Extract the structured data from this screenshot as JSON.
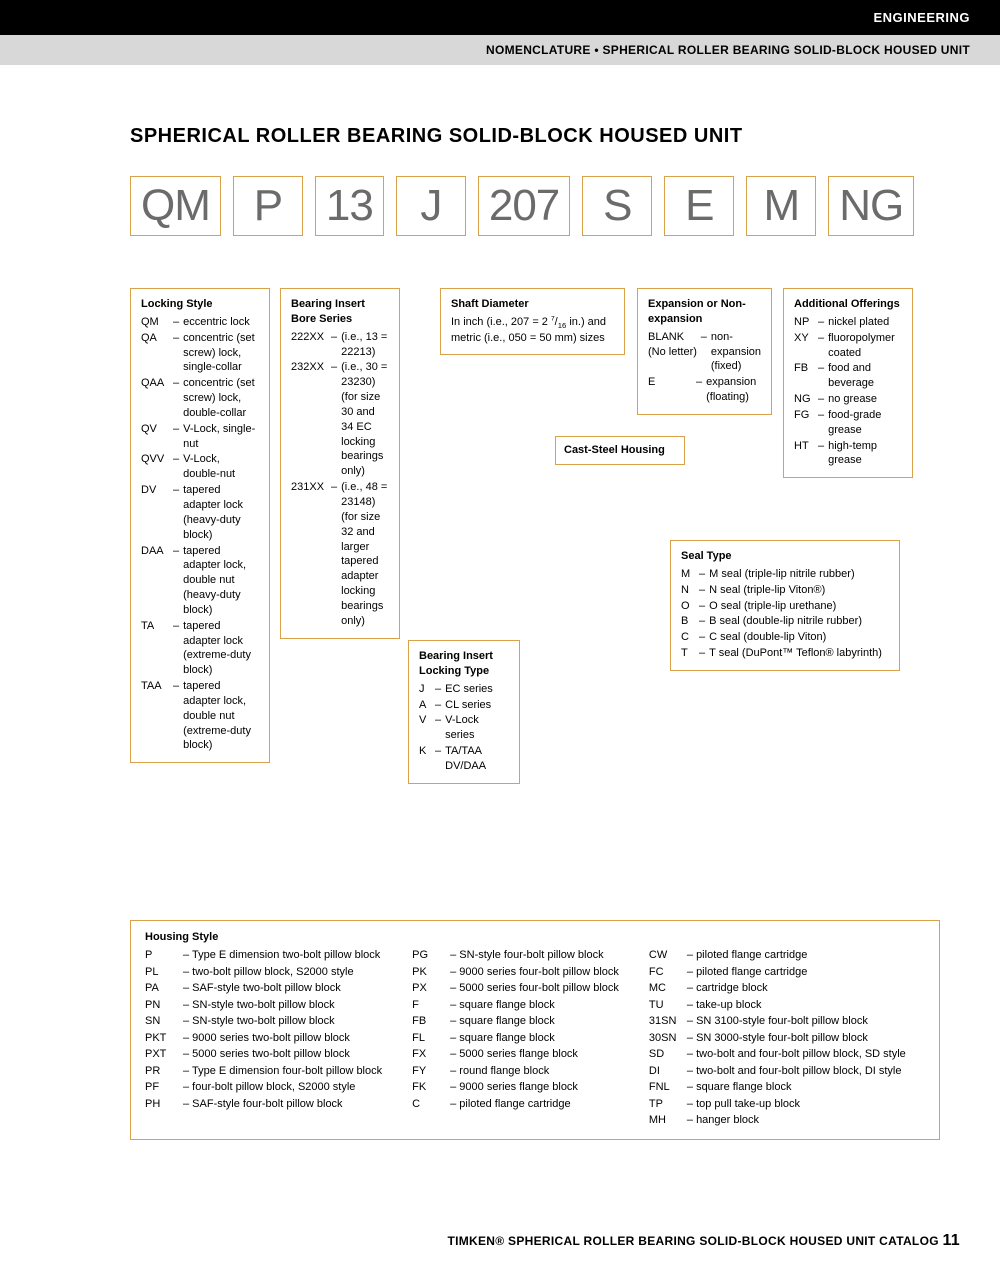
{
  "header": {
    "category": "ENGINEERING",
    "breadcrumb": "NOMENCLATURE • SPHERICAL ROLLER BEARING SOLID-BLOCK HOUSED UNIT"
  },
  "title": "SPHERICAL ROLLER BEARING SOLID-BLOCK HOUSED UNIT",
  "code_parts": [
    "QM",
    "P",
    "13",
    "J",
    "207",
    "S",
    "E",
    "M",
    "NG"
  ],
  "locking_style": {
    "title": "Locking Style",
    "items": [
      {
        "code": "QM",
        "text": "eccentric lock"
      },
      {
        "code": "QA",
        "text": "concentric (set screw) lock, single-collar"
      },
      {
        "code": "QAA",
        "text": "concentric (set screw) lock, double-collar"
      },
      {
        "code": "QV",
        "text": "V-Lock, single-nut"
      },
      {
        "code": "QVV",
        "text": "V-Lock, double-nut"
      },
      {
        "code": "DV",
        "text": "tapered adapter lock (heavy-duty block)"
      },
      {
        "code": "DAA",
        "text": "tapered adapter lock, double nut (heavy-duty block)"
      },
      {
        "code": "TA",
        "text": "tapered adapter lock (extreme-duty block)"
      },
      {
        "code": "TAA",
        "text": "tapered adapter lock, double nut (extreme-duty block)"
      }
    ]
  },
  "bore_series": {
    "title": "Bearing Insert Bore Series",
    "items": [
      {
        "code": "222XX",
        "text": "(i.e., 13 = 22213)"
      },
      {
        "code": "232XX",
        "text": "(i.e., 30 = 23230) (for size 30 and 34 EC locking bearings only)"
      },
      {
        "code": "231XX",
        "text": "(i.e., 48 = 23148) (for size 32 and larger tapered adapter locking bearings only)"
      }
    ]
  },
  "locking_type": {
    "title": "Bearing Insert Locking Type",
    "items": [
      {
        "code": "J",
        "text": "EC series"
      },
      {
        "code": "A",
        "text": "CL series"
      },
      {
        "code": "V",
        "text": "V-Lock series"
      },
      {
        "code": "K",
        "text": "TA/TAA DV/DAA"
      }
    ]
  },
  "shaft_diameter": {
    "title": "Shaft Diameter",
    "text": "In inch (i.e., 207 = 2 7/16 in.) and metric (i.e., 050 = 50 mm) sizes"
  },
  "cast_steel": {
    "title": "Cast-Steel Housing"
  },
  "expansion": {
    "title": "Expansion or Non-expansion",
    "items": [
      {
        "code": "BLANK (No letter)",
        "text": "non-expansion (fixed)"
      },
      {
        "code": "E",
        "text": "expansion (floating)"
      }
    ]
  },
  "seal_type": {
    "title": "Seal Type",
    "items": [
      {
        "code": "M",
        "text": "M seal (triple-lip nitrile rubber)"
      },
      {
        "code": "N",
        "text": "N seal (triple-lip Viton®)"
      },
      {
        "code": "O",
        "text": "O seal (triple-lip urethane)"
      },
      {
        "code": "B",
        "text": "B seal (double-lip nitrile rubber)"
      },
      {
        "code": "C",
        "text": "C seal (double-lip Viton)"
      },
      {
        "code": "T",
        "text": "T seal (DuPont™ Teflon® labyrinth)"
      }
    ]
  },
  "additional": {
    "title": "Additional Offerings",
    "items": [
      {
        "code": "NP",
        "text": "nickel plated"
      },
      {
        "code": "XY",
        "text": "fluoropolymer coated"
      },
      {
        "code": "FB",
        "text": "food and beverage"
      },
      {
        "code": "NG",
        "text": "no grease"
      },
      {
        "code": "FG",
        "text": "food-grade grease"
      },
      {
        "code": "HT",
        "text": "high-temp grease"
      }
    ]
  },
  "housing_style": {
    "title": "Housing Style",
    "col1": [
      {
        "code": "P",
        "text": "Type E dimension two-bolt pillow block"
      },
      {
        "code": "PL",
        "text": "two-bolt pillow block, S2000 style"
      },
      {
        "code": "PA",
        "text": "SAF-style two-bolt pillow block"
      },
      {
        "code": "PN",
        "text": "SN-style two-bolt pillow block"
      },
      {
        "code": "SN",
        "text": "SN-style two-bolt pillow block"
      },
      {
        "code": "PKT",
        "text": "9000 series two-bolt pillow block"
      },
      {
        "code": "PXT",
        "text": "5000 series two-bolt pillow block"
      },
      {
        "code": "PR",
        "text": "Type E dimension four-bolt pillow block"
      },
      {
        "code": "PF",
        "text": "four-bolt pillow block, S2000 style"
      },
      {
        "code": "PH",
        "text": "SAF-style four-bolt pillow block"
      }
    ],
    "col2": [
      {
        "code": "PG",
        "text": "SN-style four-bolt pillow block"
      },
      {
        "code": "PK",
        "text": "9000 series four-bolt pillow block"
      },
      {
        "code": "PX",
        "text": "5000 series four-bolt pillow block"
      },
      {
        "code": "F",
        "text": "square flange block"
      },
      {
        "code": "FB",
        "text": "square flange block"
      },
      {
        "code": "FL",
        "text": "square flange block"
      },
      {
        "code": "FX",
        "text": "5000 series flange block"
      },
      {
        "code": "FY",
        "text": "round flange block"
      },
      {
        "code": "FK",
        "text": "9000 series flange block"
      },
      {
        "code": "C",
        "text": "piloted flange cartridge"
      }
    ],
    "col3": [
      {
        "code": "CW",
        "text": "piloted flange cartridge"
      },
      {
        "code": "FC",
        "text": "piloted flange cartridge"
      },
      {
        "code": "MC",
        "text": "cartridge block"
      },
      {
        "code": "TU",
        "text": "take-up block"
      },
      {
        "code": "31SN",
        "text": "SN 3100-style four-bolt pillow block"
      },
      {
        "code": "30SN",
        "text": "SN 3000-style four-bolt pillow block"
      },
      {
        "code": "SD",
        "text": "two-bolt and four-bolt pillow block, SD style"
      },
      {
        "code": "DI",
        "text": "two-bolt and four-bolt pillow block, DI style"
      },
      {
        "code": "FNL",
        "text": "square flange block"
      },
      {
        "code": "TP",
        "text": "top pull take-up block"
      },
      {
        "code": "MH",
        "text": "hanger block"
      }
    ]
  },
  "footer": {
    "brand": "TIMKEN®",
    "text": "SPHERICAL ROLLER BEARING SOLID-BLOCK HOUSED UNIT CATALOG",
    "page": "11"
  },
  "colors": {
    "accent": "#d9a24a",
    "code_text": "#6b6b6b",
    "gray_bar": "#d8d8d8"
  }
}
